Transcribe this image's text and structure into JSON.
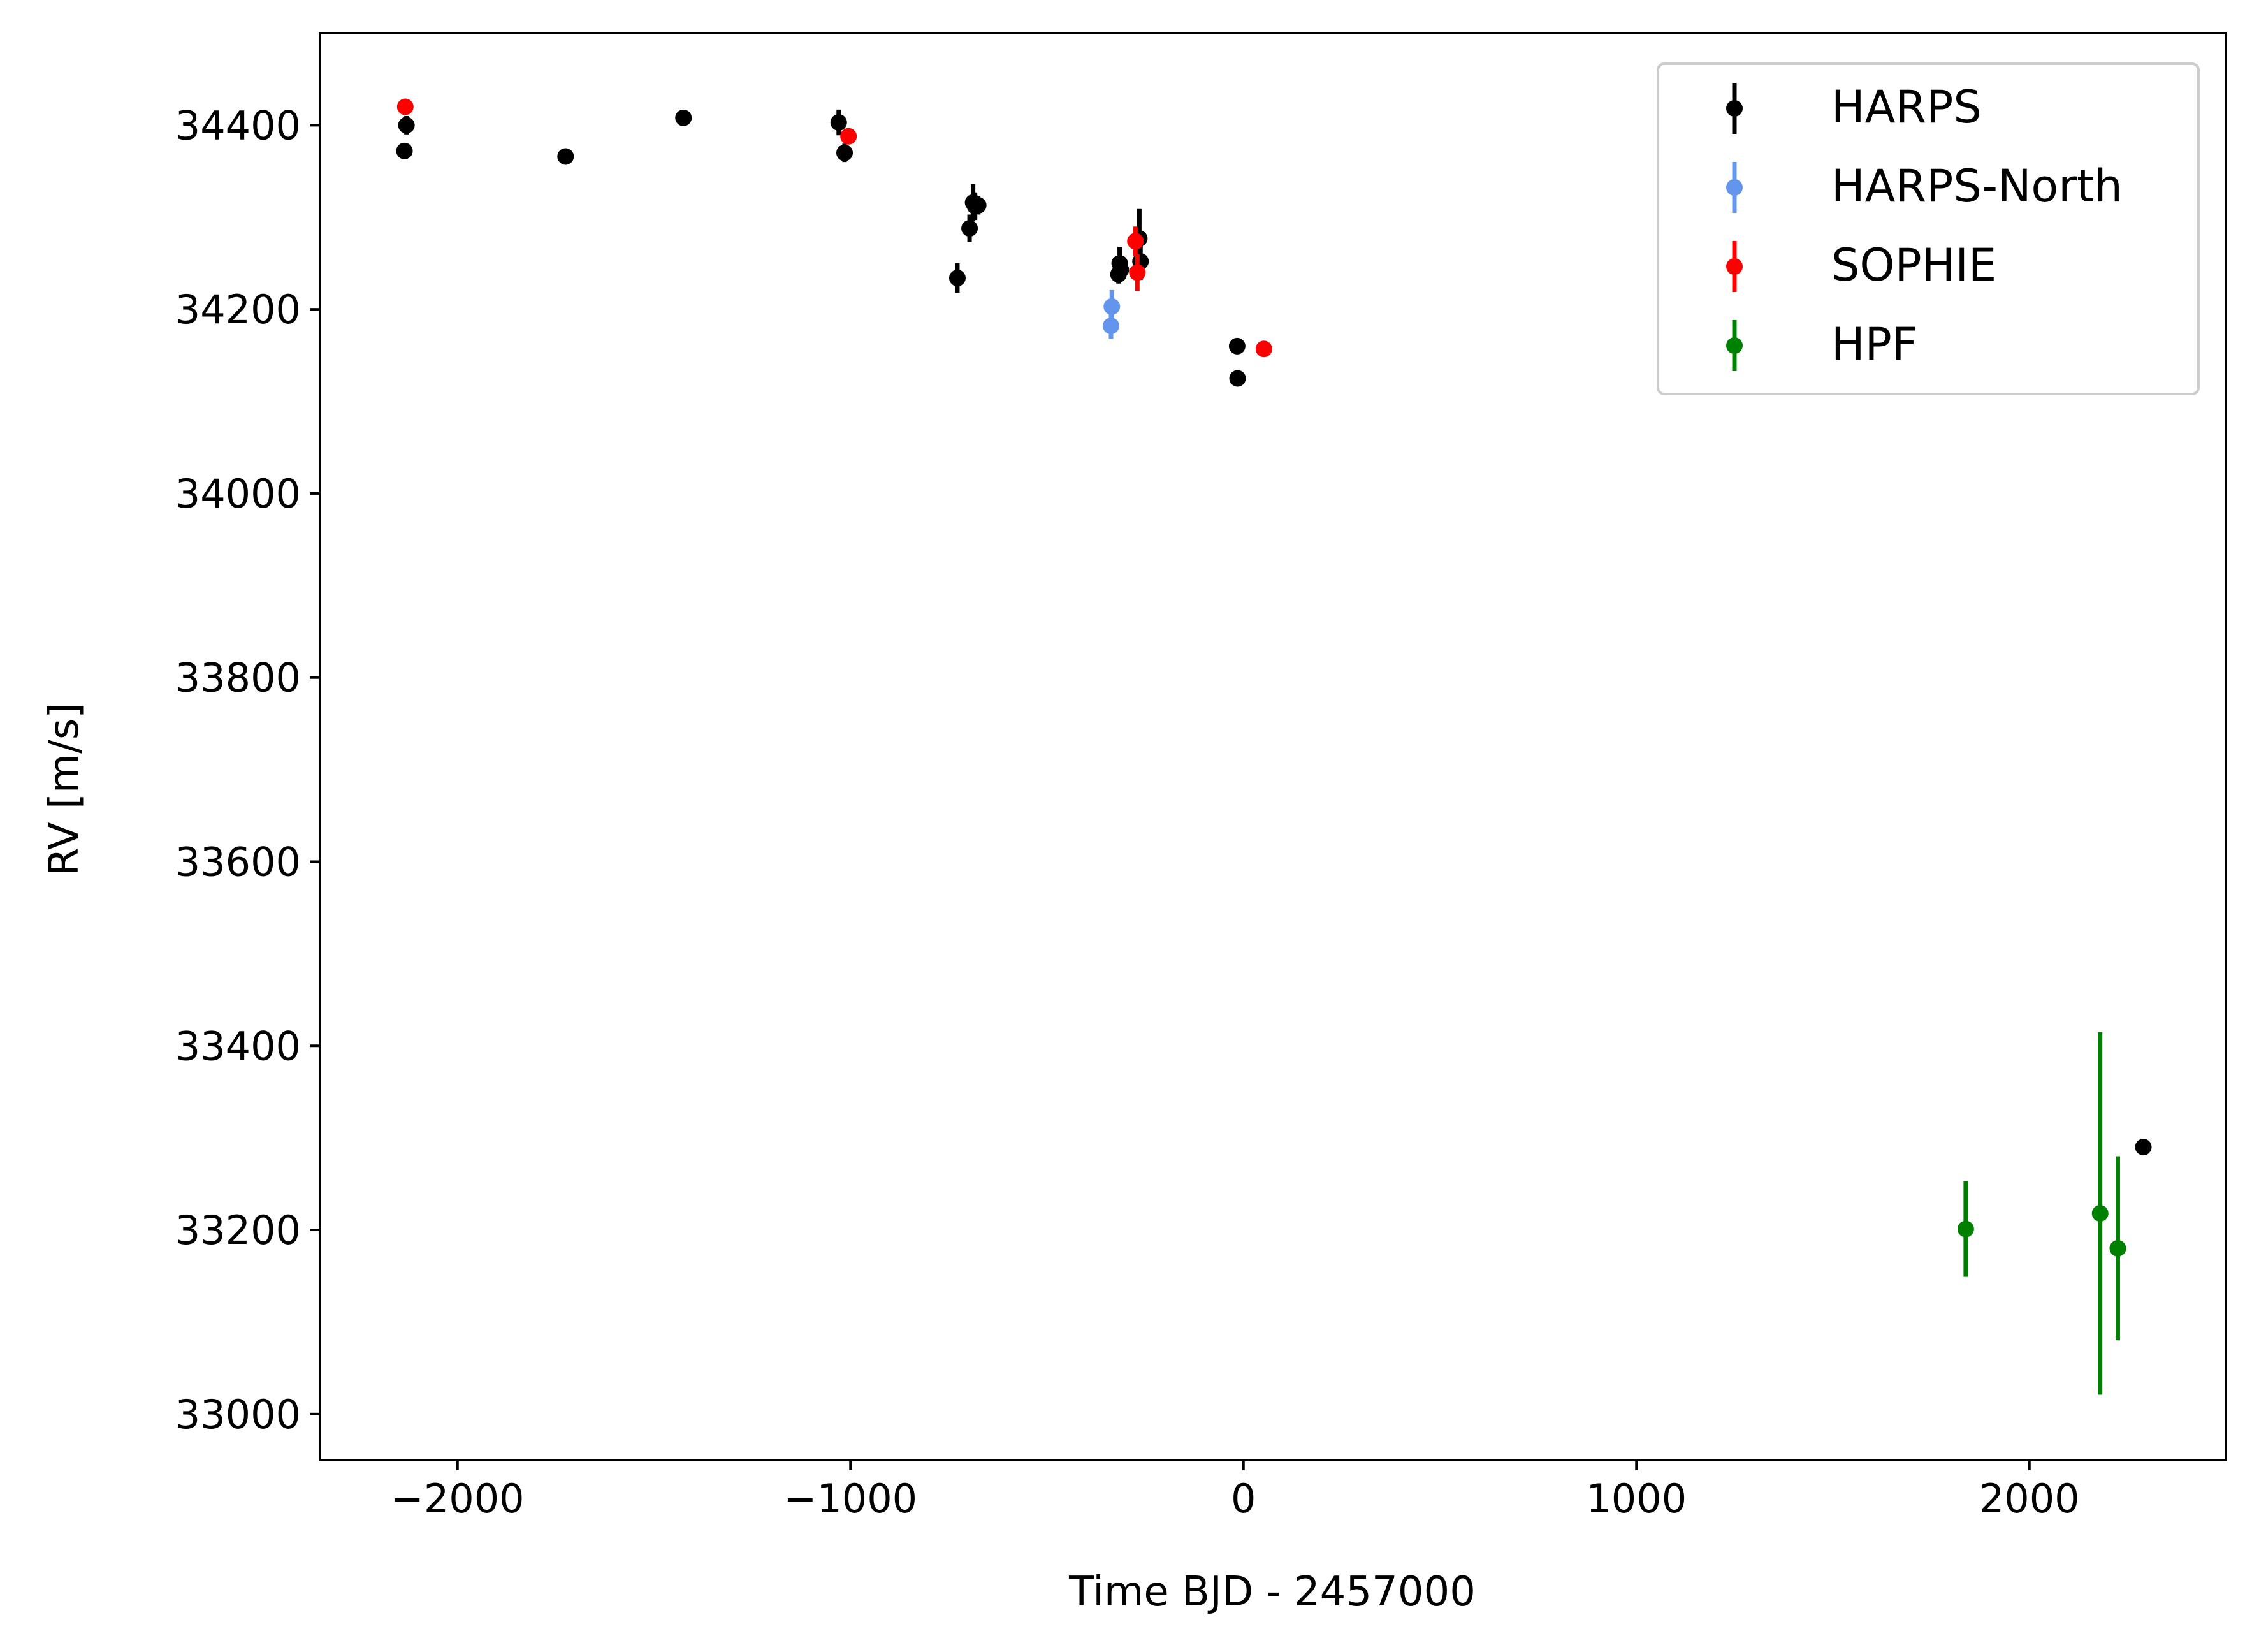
{
  "chart_data": {
    "type": "scatter",
    "title": "",
    "xlabel": "Time BJD - 2457000",
    "ylabel": "RV [m/s]",
    "xlim": [
      -2350,
      2500
    ],
    "ylim": [
      32950,
      34500
    ],
    "xticks": [
      -2000,
      -1000,
      0,
      1000,
      2000
    ],
    "xtick_labels": [
      "−2000",
      "−1000",
      "0",
      "1000",
      "2000"
    ],
    "yticks": [
      33000,
      33200,
      33400,
      33600,
      33800,
      34000,
      34200,
      34400
    ],
    "ytick_labels": [
      "33000",
      "33200",
      "33400",
      "33600",
      "33800",
      "34000",
      "34200",
      "34400"
    ],
    "grid": false,
    "legend": "upper right",
    "series": [
      {
        "name": "HARPS",
        "color": "#000000",
        "x": [
          -2135,
          -2130,
          -1725,
          -1425,
          -1030,
          -1015,
          -728,
          -697,
          -688,
          -683,
          -675,
          -318,
          -315,
          -312,
          -265,
          -262,
          -16,
          -15,
          2290
        ],
        "y": [
          34372,
          34400,
          34366,
          34408,
          34403,
          34370,
          34234,
          34288,
          34316,
          34312,
          34313,
          34238,
          34250,
          34243,
          34277,
          34252,
          34160,
          34125,
          33290
        ],
        "err": [
          8,
          10,
          5,
          5,
          14,
          10,
          16,
          15,
          20,
          15,
          10,
          10,
          18,
          12,
          32,
          20,
          6,
          5,
          6
        ]
      },
      {
        "name": "HARPS-North",
        "color": "#6495ED",
        "x": [
          -337,
          -335
        ],
        "y": [
          34182,
          34203
        ],
        "err": [
          14,
          18
        ]
      },
      {
        "name": "SOPHIE",
        "color": "#FF0000",
        "x": [
          -2133,
          -1005,
          -275,
          -270,
          52
        ],
        "y": [
          34420,
          34388,
          34274,
          34240,
          34157
        ],
        "err": [
          8,
          8,
          16,
          20,
          6
        ]
      },
      {
        "name": "HPF",
        "color": "#008000",
        "x": [
          1838,
          2180,
          2225
        ],
        "y": [
          33201,
          33218,
          33180
        ],
        "err": [
          52,
          197,
          100
        ]
      }
    ]
  }
}
